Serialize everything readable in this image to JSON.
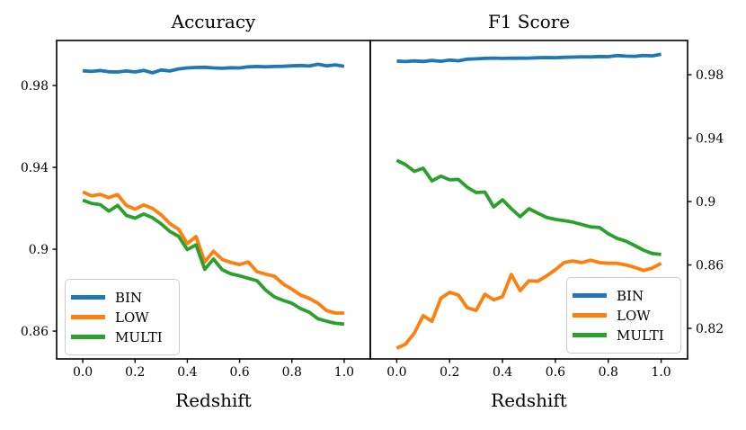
{
  "figure": {
    "background": "#ffffff",
    "text_color": "#000000",
    "frame_color": "#000000"
  },
  "chart_data": [
    {
      "type": "line",
      "title": "Accuracy",
      "xlabel": "Redshift",
      "grid": false,
      "xlim": [
        -0.1,
        1.1
      ],
      "ylim": [
        0.8464,
        1.002
      ],
      "xticks": [
        0.0,
        0.2,
        0.4,
        0.6,
        0.8,
        1.0
      ],
      "xtick_labels": [
        "0.0",
        "0.2",
        "0.4",
        "0.6",
        "0.8",
        "1.0"
      ],
      "yticks": [
        0.98,
        0.94,
        0.9,
        0.86
      ],
      "ytick_labels": [
        "0.98",
        "0.94",
        "0.9",
        "0.86"
      ],
      "ytick_side": "left",
      "legend": {
        "position": "lower-left",
        "entries": [
          "BIN",
          "LOW",
          "MULTI"
        ]
      },
      "x": [
        0.0,
        0.0333,
        0.0667,
        0.1,
        0.1333,
        0.1667,
        0.2,
        0.2333,
        0.2667,
        0.3,
        0.3333,
        0.3667,
        0.4,
        0.4333,
        0.4667,
        0.5,
        0.5333,
        0.5667,
        0.6,
        0.6333,
        0.6667,
        0.7,
        0.7333,
        0.7667,
        0.8,
        0.8333,
        0.8667,
        0.9,
        0.9333,
        0.9667,
        1.0
      ],
      "series": [
        {
          "name": "BIN",
          "color": "#1f77b4",
          "values": [
            0.9872,
            0.9869,
            0.9873,
            0.9867,
            0.9866,
            0.9871,
            0.9866,
            0.9874,
            0.9862,
            0.9876,
            0.9871,
            0.9881,
            0.9886,
            0.9888,
            0.9889,
            0.9886,
            0.9884,
            0.9887,
            0.9886,
            0.9891,
            0.9893,
            0.9891,
            0.9893,
            0.9894,
            0.9896,
            0.9898,
            0.9895,
            0.9904,
            0.9896,
            0.9901,
            0.9894
          ]
        },
        {
          "name": "LOW",
          "color": "#ff7f0e",
          "values": [
            0.928,
            0.9261,
            0.9268,
            0.9252,
            0.9267,
            0.9214,
            0.9196,
            0.9216,
            0.92,
            0.9168,
            0.9125,
            0.9098,
            0.9028,
            0.9062,
            0.8938,
            0.899,
            0.895,
            0.8935,
            0.8925,
            0.8938,
            0.889,
            0.8878,
            0.8868,
            0.883,
            0.8805,
            0.8776,
            0.876,
            0.8736,
            0.87,
            0.8688,
            0.8688
          ]
        },
        {
          "name": "MULTI",
          "color": "#2ca02c",
          "values": [
            0.924,
            0.9224,
            0.9218,
            0.9186,
            0.9214,
            0.9165,
            0.9152,
            0.9172,
            0.9154,
            0.9124,
            0.9087,
            0.9063,
            0.8998,
            0.9022,
            0.8902,
            0.8952,
            0.89,
            0.888,
            0.887,
            0.8858,
            0.8846,
            0.88,
            0.8767,
            0.875,
            0.8736,
            0.871,
            0.8692,
            0.866,
            0.8648,
            0.8638,
            0.8634
          ]
        }
      ]
    },
    {
      "type": "line",
      "title": "F1 Score",
      "xlabel": "Redshift",
      "grid": false,
      "xlim": [
        -0.1,
        1.1
      ],
      "ylim": [
        0.8007,
        1.0016
      ],
      "xticks": [
        0.0,
        0.2,
        0.4,
        0.6,
        0.8,
        1.0
      ],
      "xtick_labels": [
        "0.0",
        "0.2",
        "0.4",
        "0.6",
        "0.8",
        "1.0"
      ],
      "yticks": [
        0.98,
        0.94,
        0.9,
        0.86,
        0.82
      ],
      "ytick_labels": [
        "0.98",
        "0.94",
        "0.9",
        "0.86",
        "0.82"
      ],
      "ytick_side": "right",
      "legend": {
        "position": "lower-right",
        "entries": [
          "BIN",
          "LOW",
          "MULTI"
        ]
      },
      "x": [
        0.0,
        0.0333,
        0.0667,
        0.1,
        0.1333,
        0.1667,
        0.2,
        0.2333,
        0.2667,
        0.3,
        0.3333,
        0.3667,
        0.4,
        0.4333,
        0.4667,
        0.5,
        0.5333,
        0.5667,
        0.6,
        0.6333,
        0.6667,
        0.7,
        0.7333,
        0.7667,
        0.8,
        0.8333,
        0.8667,
        0.9,
        0.9333,
        0.9667,
        1.0
      ],
      "series": [
        {
          "name": "BIN",
          "color": "#1f77b4",
          "values": [
            0.9886,
            0.9883,
            0.9887,
            0.9884,
            0.989,
            0.9885,
            0.9892,
            0.9888,
            0.9898,
            0.99,
            0.9903,
            0.9905,
            0.9903,
            0.9905,
            0.9904,
            0.9905,
            0.9907,
            0.9908,
            0.9907,
            0.991,
            0.9911,
            0.9913,
            0.9912,
            0.9915,
            0.9914,
            0.9921,
            0.9917,
            0.9916,
            0.9921,
            0.9919,
            0.9929
          ]
        },
        {
          "name": "LOW",
          "color": "#ff7f0e",
          "values": [
            0.8075,
            0.81,
            0.817,
            0.828,
            0.8245,
            0.839,
            0.8427,
            0.841,
            0.833,
            0.8313,
            0.8415,
            0.838,
            0.84,
            0.854,
            0.8438,
            0.85,
            0.8497,
            0.853,
            0.857,
            0.8615,
            0.8625,
            0.8615,
            0.863,
            0.8615,
            0.861,
            0.861,
            0.86,
            0.8585,
            0.8565,
            0.858,
            0.861
          ]
        },
        {
          "name": "MULTI",
          "color": "#2ca02c",
          "values": [
            0.926,
            0.9233,
            0.919,
            0.921,
            0.913,
            0.916,
            0.9137,
            0.914,
            0.909,
            0.9057,
            0.906,
            0.8966,
            0.9011,
            0.8955,
            0.8904,
            0.8955,
            0.8927,
            0.89,
            0.8887,
            0.888,
            0.887,
            0.8855,
            0.884,
            0.8836,
            0.8797,
            0.8768,
            0.875,
            0.8722,
            0.8693,
            0.8672,
            0.8666
          ]
        }
      ]
    }
  ]
}
